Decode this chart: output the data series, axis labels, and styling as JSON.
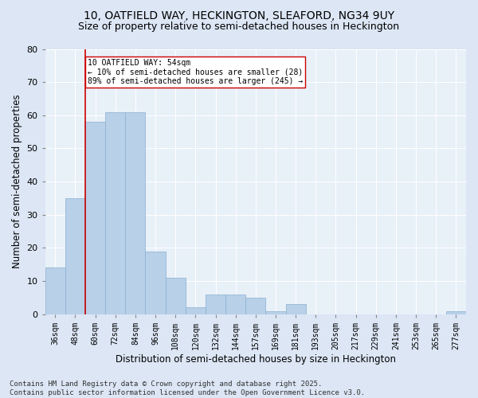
{
  "title": "10, OATFIELD WAY, HECKINGTON, SLEAFORD, NG34 9UY",
  "subtitle": "Size of property relative to semi-detached houses in Heckington",
  "xlabel": "Distribution of semi-detached houses by size in Heckington",
  "ylabel": "Number of semi-detached properties",
  "categories": [
    "36sqm",
    "48sqm",
    "60sqm",
    "72sqm",
    "84sqm",
    "96sqm",
    "108sqm",
    "120sqm",
    "132sqm",
    "144sqm",
    "157sqm",
    "169sqm",
    "181sqm",
    "193sqm",
    "205sqm",
    "217sqm",
    "229sqm",
    "241sqm",
    "253sqm",
    "265sqm",
    "277sqm"
  ],
  "values": [
    14,
    35,
    58,
    61,
    61,
    19,
    11,
    2,
    6,
    6,
    5,
    1,
    3,
    0,
    0,
    0,
    0,
    0,
    0,
    0,
    1
  ],
  "bar_color": "#b8d0e8",
  "bar_edge_color": "#8ab0d0",
  "vline_color": "#cc0000",
  "annotation_text": "10 OATFIELD WAY: 54sqm\n← 10% of semi-detached houses are smaller (28)\n89% of semi-detached houses are larger (245) →",
  "annotation_box_color": "#ffffff",
  "annotation_box_edge": "#cc0000",
  "ylim": [
    0,
    80
  ],
  "yticks": [
    0,
    10,
    20,
    30,
    40,
    50,
    60,
    70,
    80
  ],
  "footer": "Contains HM Land Registry data © Crown copyright and database right 2025.\nContains public sector information licensed under the Open Government Licence v3.0.",
  "bg_color": "#dce6f5",
  "plot_bg_color": "#e8f0f8",
  "title_fontsize": 10,
  "subtitle_fontsize": 9,
  "axis_label_fontsize": 8.5,
  "tick_fontsize": 7,
  "footer_fontsize": 6.5
}
